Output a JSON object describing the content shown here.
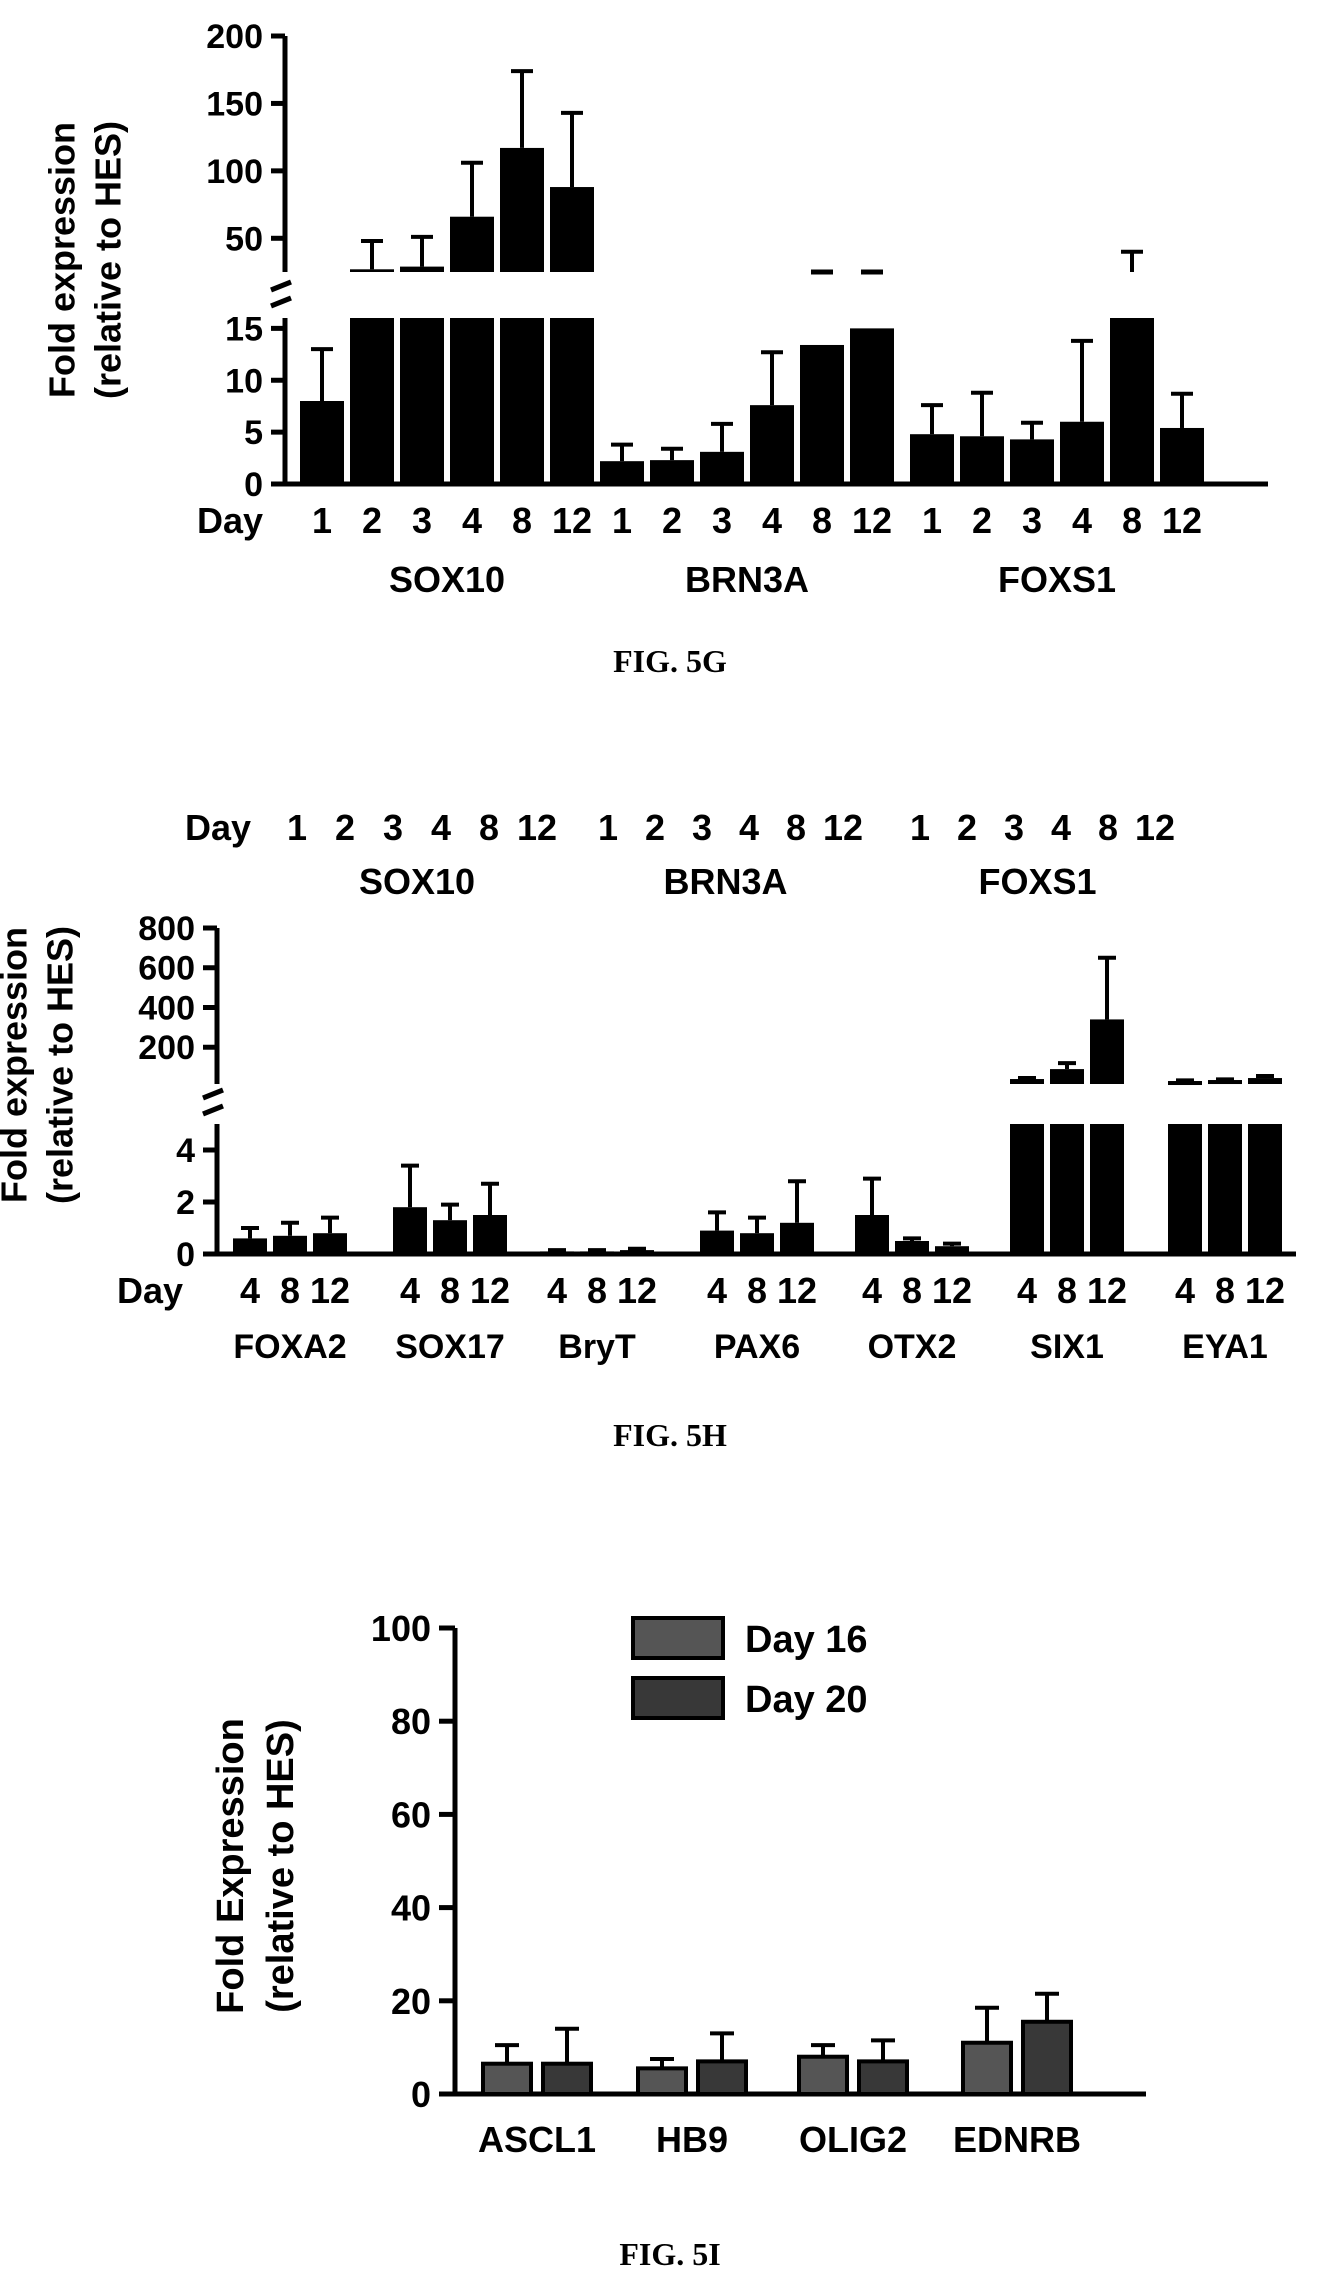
{
  "chart_data": [
    {
      "id": "5G",
      "type": "bar",
      "caption": "FIG. 5G",
      "ylabel": [
        "Fold expression",
        "(relative to HES)"
      ],
      "broken_axis": true,
      "ylim_lower": [
        0,
        16
      ],
      "ylim_upper": [
        25,
        200
      ],
      "yticks_lower": [
        "0",
        "5",
        "10",
        "15"
      ],
      "yticks_upper": [
        "50",
        "100",
        "150",
        "200"
      ],
      "row_label": "Day",
      "groups": [
        {
          "name": "SOX10",
          "days": [
            "1",
            "2",
            "3",
            "4",
            "8",
            "12"
          ],
          "values": [
            8,
            27,
            29,
            66,
            117,
            88
          ],
          "errors": [
            13,
            48,
            51,
            106,
            174,
            143
          ]
        },
        {
          "name": "BRN3A",
          "days": [
            "1",
            "2",
            "3",
            "4",
            "8",
            "12"
          ],
          "values": [
            2.2,
            2.3,
            3.1,
            7.6,
            13.4,
            15.0
          ],
          "errors": [
            3.8,
            3.4,
            5.8,
            12.7,
            25,
            25
          ]
        },
        {
          "name": "FOXS1",
          "days": [
            "1",
            "2",
            "3",
            "4",
            "8",
            "12"
          ],
          "values": [
            4.8,
            4.6,
            4.3,
            6.0,
            21,
            5.4
          ],
          "errors": [
            7.6,
            8.8,
            5.9,
            13.8,
            40,
            8.7
          ]
        }
      ]
    },
    {
      "id": "5H",
      "type": "bar",
      "caption": "FIG. 5H",
      "ylabel": [
        "Fold expression",
        "(relative to HES)"
      ],
      "broken_axis": true,
      "ylim_lower": [
        0,
        5
      ],
      "ylim_upper": [
        15,
        800
      ],
      "yticks_lower": [
        "0",
        "2",
        "4"
      ],
      "yticks_upper": [
        "200",
        "400",
        "600",
        "800"
      ],
      "row_label": "Day",
      "top_label": {
        "row_label": "Day",
        "groups": [
          {
            "name": "SOX10",
            "days": [
              "1",
              "2",
              "3",
              "4",
              "8",
              "12"
            ]
          },
          {
            "name": "BRN3A",
            "days": [
              "1",
              "2",
              "3",
              "4",
              "8",
              "12"
            ]
          },
          {
            "name": "FOXS1",
            "days": [
              "1",
              "2",
              "3",
              "4",
              "8",
              "12"
            ]
          }
        ]
      },
      "groups": [
        {
          "name": "FOXA2",
          "days": [
            "4",
            "8",
            "12"
          ],
          "values": [
            0.6,
            0.7,
            0.8
          ],
          "errors": [
            1.0,
            1.2,
            1.4
          ]
        },
        {
          "name": "SOX17",
          "days": [
            "4",
            "8",
            "12"
          ],
          "values": [
            1.8,
            1.3,
            1.5
          ],
          "errors": [
            3.4,
            1.9,
            2.7
          ]
        },
        {
          "name": "BryT",
          "days": [
            "4",
            "8",
            "12"
          ],
          "values": [
            0.1,
            0.1,
            0.15
          ],
          "errors": [
            0.15,
            0.15,
            0.2
          ]
        },
        {
          "name": "PAX6",
          "days": [
            "4",
            "8",
            "12"
          ],
          "values": [
            0.9,
            0.8,
            1.2
          ],
          "errors": [
            1.6,
            1.4,
            2.8
          ]
        },
        {
          "name": "OTX2",
          "days": [
            "4",
            "8",
            "12"
          ],
          "values": [
            1.5,
            0.5,
            0.3
          ],
          "errors": [
            2.9,
            0.6,
            0.4
          ]
        },
        {
          "name": "SIX1",
          "days": [
            "4",
            "8",
            "12"
          ],
          "values": [
            40,
            90,
            340
          ],
          "errors": [
            45,
            120,
            650
          ]
        },
        {
          "name": "EYA1",
          "days": [
            "4",
            "8",
            "12"
          ],
          "values": [
            30,
            35,
            45
          ],
          "errors": [
            33,
            38,
            55
          ]
        }
      ]
    },
    {
      "id": "5I",
      "type": "bar",
      "caption": "FIG. 5I",
      "ylabel": [
        "Fold  Expression",
        "(relative to  HES)"
      ],
      "ylim": [
        0,
        100
      ],
      "yticks": [
        "0",
        "20",
        "40",
        "60",
        "80",
        "100"
      ],
      "categories": [
        "ASCL1",
        "HB9",
        "OLIG2",
        "EDNRB"
      ],
      "series": [
        {
          "name": "Day 16",
          "color": "#555555",
          "values": [
            6.5,
            5.5,
            8,
            11
          ],
          "errors": [
            10.5,
            7.5,
            10.5,
            18.5
          ]
        },
        {
          "name": "Day 20",
          "color": "#383838",
          "values": [
            6.5,
            7,
            7,
            15.5
          ],
          "errors": [
            14,
            13,
            11.5,
            21.5
          ]
        }
      ]
    }
  ]
}
